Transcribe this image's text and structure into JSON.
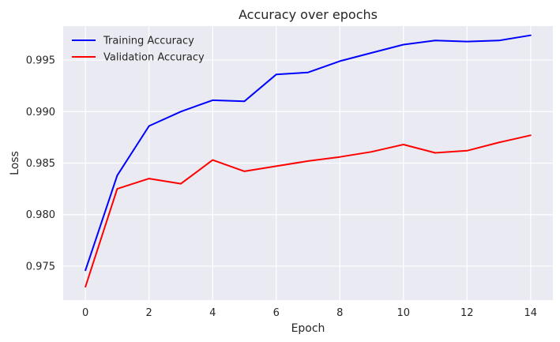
{
  "chart_data": {
    "type": "line",
    "title": "Accuracy over epochs",
    "xlabel": "Epoch",
    "ylabel": "Loss",
    "x": [
      0,
      1,
      2,
      3,
      4,
      5,
      6,
      7,
      8,
      9,
      10,
      11,
      12,
      13,
      14
    ],
    "xlim": [
      -0.7,
      14.7
    ],
    "ylim": [
      0.9717,
      0.9983
    ],
    "xticks": [
      0,
      2,
      4,
      6,
      8,
      10,
      12,
      14
    ],
    "yticks": [
      0.975,
      0.98,
      0.985,
      0.99,
      0.995
    ],
    "ytick_labels": [
      "0.975",
      "0.980",
      "0.985",
      "0.990",
      "0.995"
    ],
    "grid": true,
    "legend_position": "top-left",
    "series": [
      {
        "name": "Training Accuracy",
        "color": "#0000ff",
        "values": [
          0.9746,
          0.9838,
          0.9886,
          0.99,
          0.9911,
          0.991,
          0.9936,
          0.9938,
          0.9949,
          0.9957,
          0.9965,
          0.9969,
          0.9968,
          0.9969,
          0.9974
        ]
      },
      {
        "name": "Validation Accuracy",
        "color": "#ff0000",
        "values": [
          0.973,
          0.9825,
          0.9835,
          0.983,
          0.9853,
          0.9842,
          0.9847,
          0.9852,
          0.9856,
          0.9861,
          0.9868,
          0.986,
          0.9862,
          0.987,
          0.9877
        ]
      }
    ]
  }
}
